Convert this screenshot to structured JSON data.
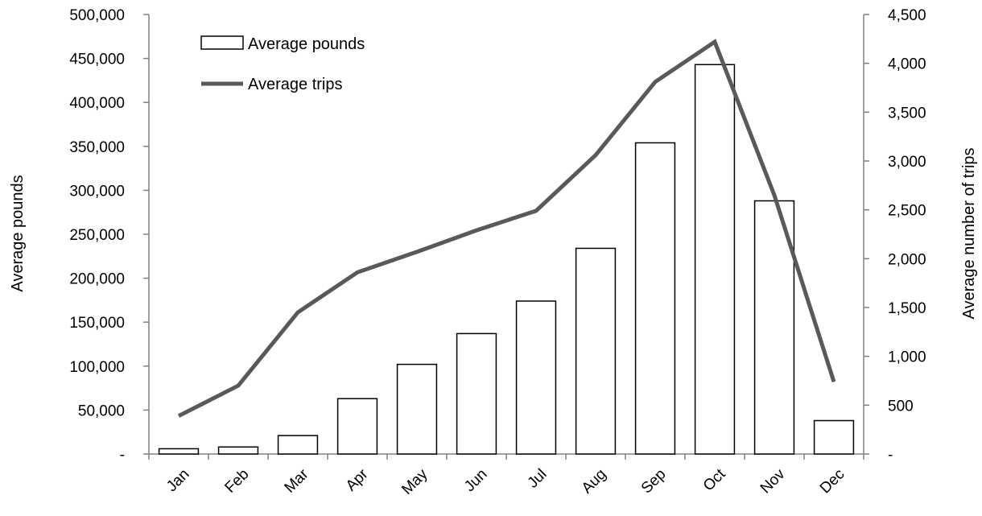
{
  "chart_data": {
    "type": "bar",
    "categories": [
      "Jan",
      "Feb",
      "Mar",
      "Apr",
      "May",
      "Jun",
      "Jul",
      "Aug",
      "Sep",
      "Oct",
      "Nov",
      "Dec"
    ],
    "series": [
      {
        "name": "Average pounds",
        "type": "bar",
        "axis": "left",
        "values": [
          6000,
          8000,
          21000,
          63000,
          102000,
          137000,
          174000,
          234000,
          354000,
          443000,
          288000,
          38000
        ]
      },
      {
        "name": "Average trips",
        "type": "line",
        "axis": "right",
        "values": [
          390,
          700,
          1450,
          1860,
          2070,
          2290,
          2490,
          3060,
          3810,
          4220,
          2650,
          740
        ]
      }
    ],
    "ylabel": "Average pounds",
    "y2label": "Average number of trips",
    "ylim": [
      0,
      500000
    ],
    "y2lim": [
      0,
      4500
    ],
    "yticks": [
      "-",
      "50,000",
      "100,000",
      "150,000",
      "200,000",
      "250,000",
      "300,000",
      "350,000",
      "400,000",
      "450,000",
      "500,000"
    ],
    "y2ticks": [
      "-",
      "500",
      "1,000",
      "1,500",
      "2,000",
      "2,500",
      "3,000",
      "3,500",
      "4,000",
      "4,500"
    ],
    "legend_position": "top-left",
    "grid": false,
    "colors": {
      "bar_fill": "#ffffff",
      "bar_stroke": "#000000",
      "line": "#595959",
      "axis": "#808080"
    }
  }
}
